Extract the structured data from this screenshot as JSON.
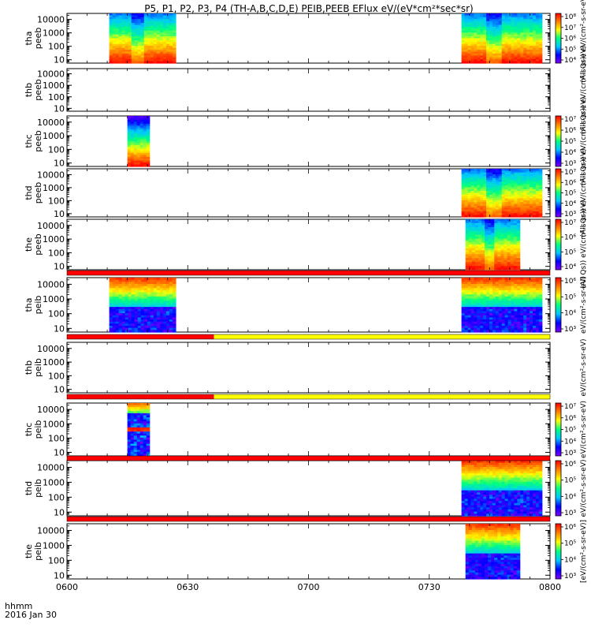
{
  "chart_data": {
    "type": "heatmap",
    "title": "P5, P1, P2, P3, P4 (TH-A,B,C,D,E) PEIB,PEEB EFlux eV/(eV*cm²*sec*sr)",
    "x_ticks": [
      "0600",
      "0630",
      "0700",
      "0730",
      "0800"
    ],
    "x_range_minutes": [
      0,
      120
    ],
    "xlabel_lines": [
      "hhmm",
      "2016 Jan 30"
    ],
    "y_scale": "log",
    "y_ticks": [
      "10",
      "100",
      "1000",
      "10000"
    ],
    "colorscale": [
      "#7f00ff",
      "#0000ff",
      "#00c8ff",
      "#00ff80",
      "#ffff00",
      "#ff8000",
      "#ff0000"
    ],
    "panels": [
      {
        "label": [
          "tha",
          "peeb"
        ],
        "colorbar": {
          "ticks": [
            "10⁸",
            "10⁷",
            "10⁶",
            "10⁵",
            "10⁴"
          ],
          "title": "(All Qs)) eV/(cm²-s-sr-eV)"
        },
        "blocks": [
          {
            "t0": 10.5,
            "t1": 27,
            "style": "electron"
          },
          {
            "t0": 98,
            "t1": 118,
            "style": "electron"
          }
        ]
      },
      {
        "label": [
          "thb",
          "peeb"
        ],
        "colorbar": {
          "ticks": [],
          "title": "(All Qs)) eV/(cm²-s-sr-eV)"
        },
        "blocks": []
      },
      {
        "label": [
          "thc",
          "peeb"
        ],
        "colorbar": {
          "ticks": [
            "10⁷",
            "10⁶",
            "10⁵",
            "10⁴",
            "10³"
          ],
          "title": "(All Qs)) eV/(cm²-s-sr-eV)"
        },
        "blocks": [
          {
            "t0": 15,
            "t1": 20.5,
            "style": "narrow"
          }
        ]
      },
      {
        "label": [
          "thd",
          "peeb"
        ],
        "colorbar": {
          "ticks": [
            "10⁷",
            "10⁶",
            "10⁵",
            "10⁴",
            "10³"
          ],
          "title": "(All Qs)) eV/(cm²-s-sr-eV)"
        },
        "blocks": [
          {
            "t0": 98,
            "t1": 118,
            "style": "electron"
          }
        ]
      },
      {
        "label": [
          "the",
          "peeb"
        ],
        "colorbar": {
          "ticks": [
            "10⁷",
            "10⁶",
            "10⁵",
            "10⁴"
          ],
          "title": "(All Qs)) eV/(cm²-s-sr-eV)"
        },
        "blocks": [
          {
            "t0": 99,
            "t1": 112.5,
            "style": "electron"
          }
        ]
      },
      {
        "label": [
          "tha",
          "peib"
        ],
        "colorbar": {
          "ticks": [
            "10⁶",
            "10⁵",
            "10⁴",
            "10³"
          ],
          "title": "eV/(cm²-s-sr-eV)"
        },
        "blocks": [
          {
            "t0": 10.5,
            "t1": 27,
            "style": "ion"
          },
          {
            "t0": 98,
            "t1": 118,
            "style": "ion"
          }
        ]
      },
      {
        "label": [
          "thb",
          "peib"
        ],
        "colorbar": {
          "ticks": [],
          "title": "eV/(cm²-s-sr-eV)"
        },
        "blocks": []
      },
      {
        "label": [
          "thc",
          "peib"
        ],
        "colorbar": {
          "ticks": [
            "10⁷",
            "10⁶",
            "10⁵",
            "10⁴",
            "10³"
          ],
          "title": "eV/(cm²-s-sr-eV)"
        },
        "blocks": [
          {
            "t0": 15,
            "t1": 20.5,
            "style": "narrowion"
          }
        ]
      },
      {
        "label": [
          "thd",
          "peib"
        ],
        "colorbar": {
          "ticks": [
            "10⁶",
            "10⁵",
            "10⁴",
            "10³"
          ],
          "title": "eV/(cm²-s-sr-eV)"
        },
        "blocks": [
          {
            "t0": 98,
            "t1": 118,
            "style": "ion"
          }
        ]
      },
      {
        "label": [
          "the",
          "peib"
        ],
        "colorbar": {
          "ticks": [
            "10⁶",
            "10⁵",
            "10⁴",
            "10³"
          ],
          "title": "[eV/(cm²-s-sr-eV)]"
        },
        "blocks": [
          {
            "t0": 99,
            "t1": 112.5,
            "style": "ion"
          }
        ]
      }
    ],
    "mode_bars": [
      {
        "after_panel": 5,
        "segments": [
          {
            "t0": 0,
            "t1": 120,
            "color": "#ff0000"
          }
        ]
      },
      {
        "after_panel": 6,
        "segments": [
          {
            "t0": 0,
            "t1": 36.5,
            "color": "#ff0000"
          },
          {
            "t0": 36.5,
            "t1": 120,
            "color": "#ffff00"
          }
        ]
      },
      {
        "after_panel": 7,
        "segments": [
          {
            "t0": 0,
            "t1": 36.5,
            "color": "#ff0000"
          },
          {
            "t0": 36.5,
            "t1": 120,
            "color": "#ffff00"
          }
        ]
      },
      {
        "after_panel": 8,
        "segments": [
          {
            "t0": 0,
            "t1": 120,
            "color": "#ff0000"
          }
        ]
      },
      {
        "after_panel": 9,
        "segments": [
          {
            "t0": 0,
            "t1": 120,
            "color": "#ff0000"
          }
        ]
      }
    ]
  }
}
